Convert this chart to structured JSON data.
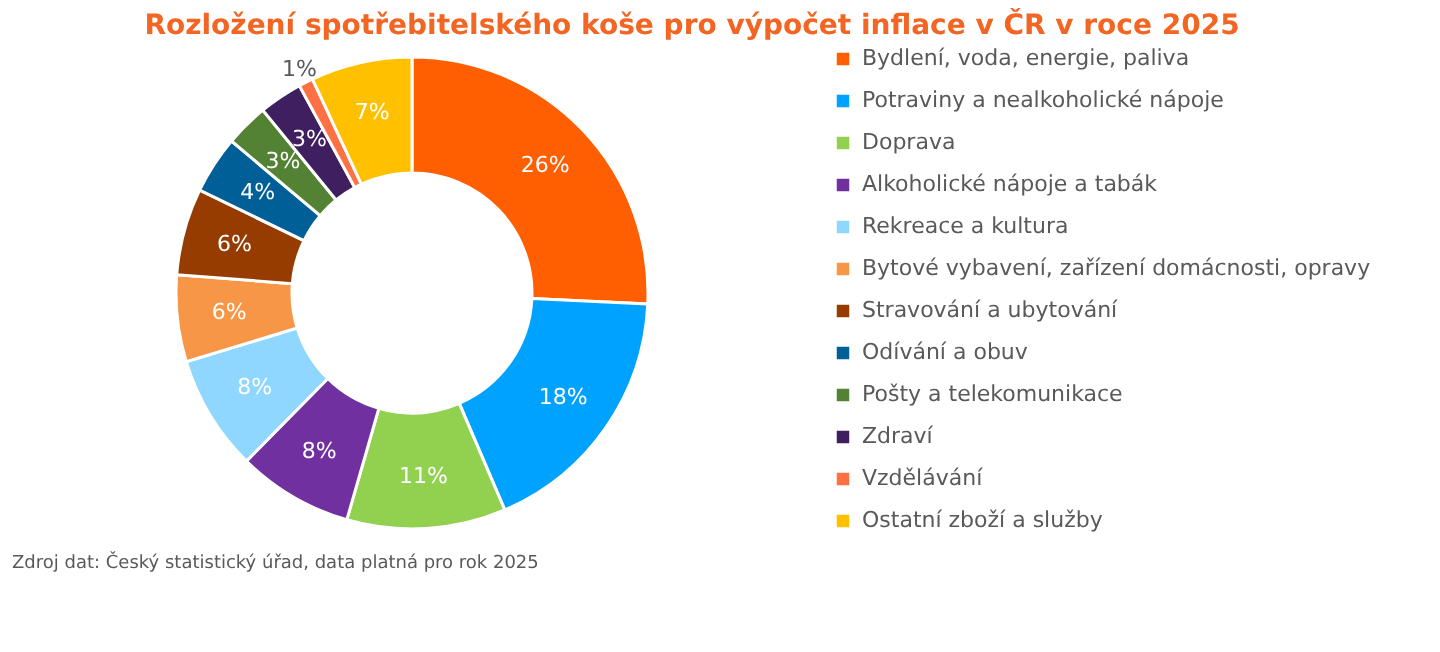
{
  "chart_data": {
    "type": "donut",
    "title": "Rozložení spotřebitelského koše pro výpočet inflace v ČR v roce 2025",
    "categories": [
      "Bydlení, voda, energie, paliva",
      "Potraviny a nealkoholické nápoje",
      "Doprava",
      "Alkoholické nápoje a tabák",
      "Rekreace a kultura",
      "Bytové vybavení, zařízení domácnosti, opravy",
      "Stravování a ubytování",
      "Odívání a obuv",
      "Pošty a telekomunikace",
      "Zdraví",
      "Vzdělávání",
      "Ostatní zboží a služby"
    ],
    "values": [
      26,
      18,
      11,
      8,
      8,
      6,
      6,
      4,
      3,
      3,
      1,
      7
    ],
    "value_labels": [
      "26%",
      "18%",
      "11%",
      "8%",
      "8%",
      "6%",
      "6%",
      "4%",
      "3%",
      "3%",
      "1%",
      "7%"
    ],
    "colors": [
      "#ff5f00",
      "#00a2ff",
      "#92d050",
      "#7030a0",
      "#8fd7ff",
      "#f79646",
      "#963c00",
      "#005f96",
      "#548235",
      "#3f1f5f",
      "#ff7043",
      "#ffc000"
    ],
    "legend": "right",
    "annotations": [
      "Zdroj dat: Český statistický úřad, data platná pro rok 2025"
    ]
  }
}
